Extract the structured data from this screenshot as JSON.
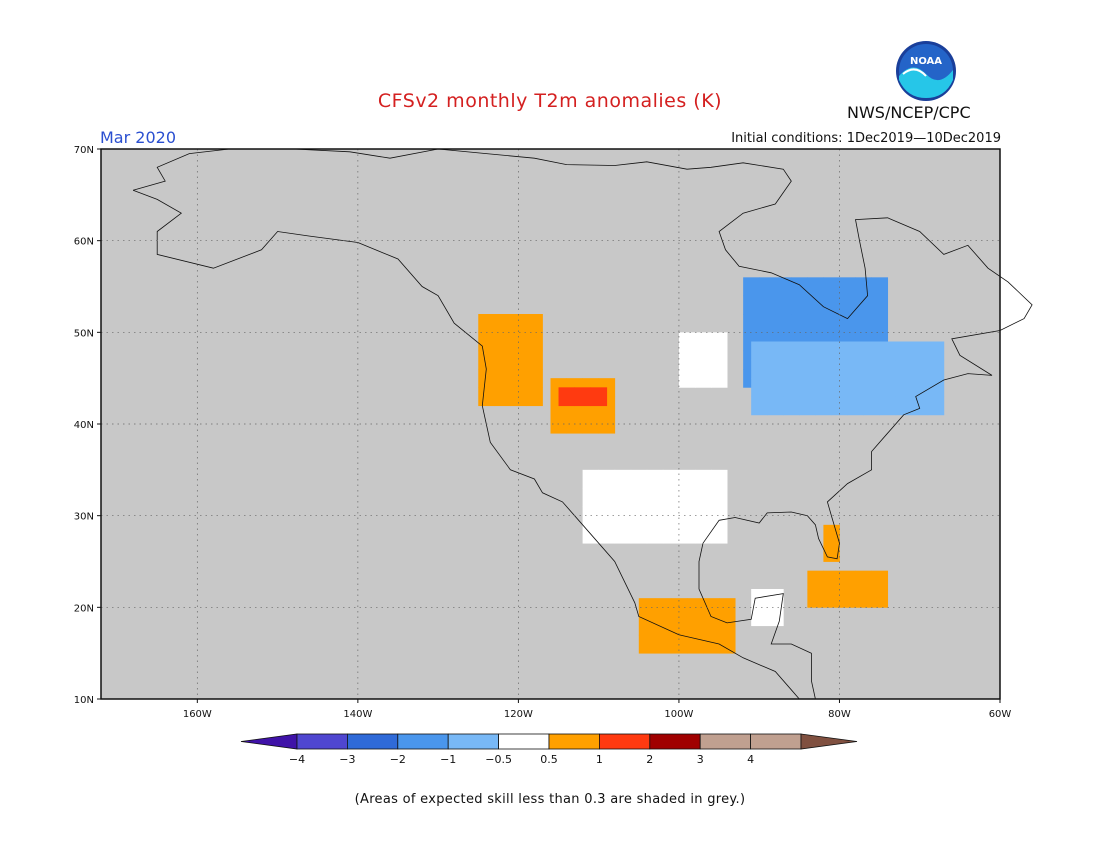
{
  "title": "CFSv2 monthly T2m anomalies (K)",
  "valid_month": "Mar 2020",
  "initial_conditions": "Initial conditions: 1Dec2019—10Dec2019",
  "agency": "NWS/NCEP/CPC",
  "logo_text": "NOAA",
  "footnote": "(Areas of expected skill less than 0.3 are shaded in grey.)",
  "map": {
    "region": "North America",
    "lon_range": [
      -172,
      -60
    ],
    "lat_range": [
      10,
      70
    ],
    "grey_color": "#c8c8c8",
    "lat_ticks": [
      {
        "value": 70,
        "label": "70N"
      },
      {
        "value": 60,
        "label": "60N"
      },
      {
        "value": 50,
        "label": "50N"
      },
      {
        "value": 40,
        "label": "40N"
      },
      {
        "value": 30,
        "label": "30N"
      },
      {
        "value": 20,
        "label": "20N"
      },
      {
        "value": 10,
        "label": "10N"
      }
    ],
    "lon_ticks": [
      {
        "value": -160,
        "label": "160W"
      },
      {
        "value": -140,
        "label": "140W"
      },
      {
        "value": -120,
        "label": "120W"
      },
      {
        "value": -100,
        "label": "100W"
      },
      {
        "value": -80,
        "label": "80W"
      },
      {
        "value": -60,
        "label": "60W"
      }
    ]
  },
  "colorbar": {
    "labels": [
      "−4",
      "−3",
      "−2",
      "−1",
      "−0.5",
      "0.5",
      "1",
      "2",
      "3",
      "4"
    ],
    "colors": [
      "#3f12a8",
      "#4f46d0",
      "#2f6ad8",
      "#4a96ec",
      "#78b8f6",
      "#ffffff",
      "#ffa000",
      "#ff3a10",
      "#a00000",
      "#c0a090",
      "#805040"
    ],
    "extend_low_color": "#3f12a8",
    "extend_high_color": "#805040"
  },
  "anomaly_regions": [
    {
      "name": "Great Lakes / Quebec",
      "class": "-1",
      "color": "#4a96ec",
      "lon": [
        -92,
        -75
      ],
      "lat": [
        44,
        55
      ]
    },
    {
      "name": "Upper Midwest / New England",
      "class": "-0.5",
      "color": "#78b8f6",
      "lon": [
        -91,
        -68
      ],
      "lat": [
        41,
        49
      ]
    },
    {
      "name": "Northern Plains",
      "class": "0.5",
      "color": "#ffffff",
      "lon": [
        -100,
        -95
      ],
      "lat": [
        44,
        49
      ]
    },
    {
      "name": "Pacific Northwest",
      "class": "1",
      "color": "#ffa000",
      "lon": [
        -125,
        -117
      ],
      "lat": [
        42,
        51
      ]
    },
    {
      "name": "Idaho / Utah",
      "class": "1",
      "color": "#ffa000",
      "lon": [
        -116,
        -108
      ],
      "lat": [
        39,
        45
      ]
    },
    {
      "name": "Idaho core",
      "class": "2",
      "color": "#ff3a10",
      "lon": [
        -115,
        -110
      ],
      "lat": [
        42,
        44
      ]
    },
    {
      "name": "Texas / Northern Mexico",
      "class": "0.5",
      "color": "#ffffff",
      "lon": [
        -112,
        -94
      ],
      "lat": [
        27,
        34
      ]
    },
    {
      "name": "Southern Mexico",
      "class": "1",
      "color": "#ffa000",
      "lon": [
        -105,
        -93
      ],
      "lat": [
        15,
        21
      ]
    },
    {
      "name": "Florida",
      "class": "1",
      "color": "#ffa000",
      "lon": [
        -82,
        -80
      ],
      "lat": [
        25,
        29
      ]
    },
    {
      "name": "Cuba",
      "class": "1",
      "color": "#ffa000",
      "lon": [
        -84,
        -75
      ],
      "lat": [
        20,
        23
      ]
    },
    {
      "name": "Yucatan",
      "class": "0.5",
      "color": "#ffffff",
      "lon": [
        -91,
        -87
      ],
      "lat": [
        18,
        21
      ]
    }
  ]
}
